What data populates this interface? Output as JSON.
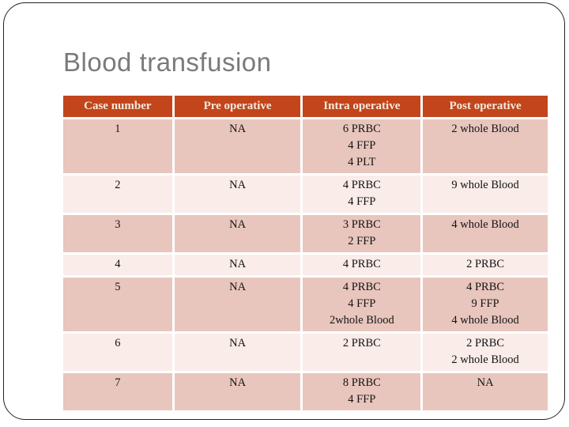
{
  "slide": {
    "title": "Blood transfusion"
  },
  "table": {
    "headers": {
      "case": "Case number",
      "pre": "Pre operative",
      "intra": "Intra operative",
      "post": "Post operative"
    },
    "rows": [
      {
        "case": "1",
        "pre": "NA",
        "intra": "6 PRBC\n4 FFP\n4 PLT",
        "post": "2 whole Blood"
      },
      {
        "case": "2",
        "pre": "NA",
        "intra": "4 PRBC\n4 FFP",
        "post": "9 whole Blood"
      },
      {
        "case": "3",
        "pre": "NA",
        "intra": "3 PRBC\n2 FFP",
        "post": "4 whole Blood"
      },
      {
        "case": "4",
        "pre": "NA",
        "intra": "4 PRBC",
        "post": "2 PRBC"
      },
      {
        "case": "5",
        "pre": "NA",
        "intra": "4 PRBC\n4 FFP\n2whole Blood",
        "post": "4 PRBC\n9 FFP\n4 whole Blood"
      },
      {
        "case": "6",
        "pre": "NA",
        "intra": "2 PRBC",
        "post": "2 PRBC\n2 whole Blood"
      },
      {
        "case": "7",
        "pre": "NA",
        "intra": "8 PRBC\n4 FFP",
        "post": "NA"
      }
    ]
  },
  "colors": {
    "header_bg": "#C2451C",
    "header_text": "#F5EBDD",
    "row_dark": "#E8C6BD",
    "row_light": "#F9ECE9",
    "title_text": "#7A7A7A",
    "cell_text": "#141414",
    "slide_border": "#222222"
  }
}
